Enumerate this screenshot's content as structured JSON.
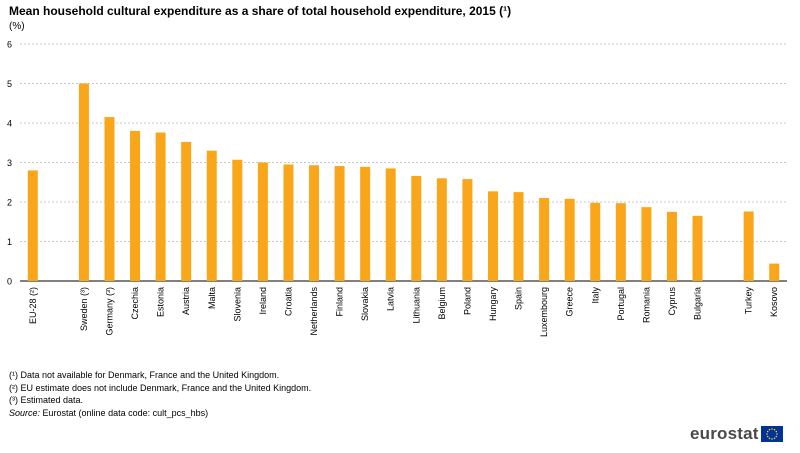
{
  "title": "Mean household cultural expenditure as a share of total household expenditure, 2015 (¹)",
  "unit": "(%)",
  "chart_data": {
    "type": "bar",
    "categories": [
      "EU-28 (²)",
      "Sweden (³)",
      "Germany (³)",
      "Czechia",
      "Estonia",
      "Austria",
      "Malta",
      "Slovenia",
      "Ireland",
      "Croatia",
      "Netherlands",
      "Finland",
      "Slovakia",
      "Latvia",
      "Lithuania",
      "Belgium",
      "Poland",
      "Hungary",
      "Spain",
      "Luxembourg",
      "Greece",
      "Italy",
      "Portugal",
      "Romania",
      "Cyprus",
      "Bulgaria",
      "Turkey",
      "Kosovo"
    ],
    "values": [
      2.8,
      5.0,
      4.15,
      3.8,
      3.76,
      3.52,
      3.3,
      3.07,
      3.0,
      2.95,
      2.93,
      2.91,
      2.89,
      2.85,
      2.66,
      2.6,
      2.58,
      2.27,
      2.25,
      2.1,
      2.08,
      1.98,
      1.97,
      1.87,
      1.75,
      1.65,
      1.76,
      0.44
    ],
    "slot_index": [
      0,
      2,
      3,
      4,
      5,
      6,
      7,
      8,
      9,
      10,
      11,
      12,
      13,
      14,
      15,
      16,
      17,
      18,
      19,
      20,
      21,
      22,
      23,
      24,
      25,
      26,
      28,
      29
    ],
    "slot_count": 30,
    "ylim": [
      0,
      6
    ],
    "yticks": [
      0,
      1,
      2,
      3,
      4,
      5,
      6
    ],
    "grid": true,
    "bar_color": "#f9a61a",
    "title": "Mean household cultural expenditure as a share of total household expenditure, 2015 (¹)",
    "xlabel": "",
    "ylabel": "(%)"
  },
  "footnotes": [
    "(¹) Data not available for Denmark, France and the United Kingdom.",
    "(²) EU estimate does not include Denmark, France and the United Kingdom.",
    "(³) Estimated data."
  ],
  "source_label": "Source:",
  "source_text": " Eurostat (online data code: cult_pcs_hbs)",
  "logo": {
    "text": "eurostat",
    "flag_color": "#003399",
    "star_color": "#ffcc00"
  }
}
